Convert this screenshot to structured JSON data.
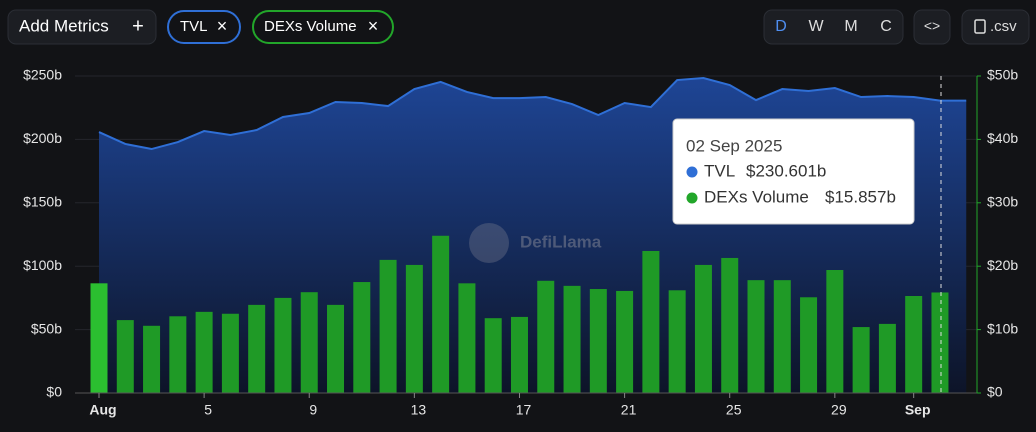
{
  "toolbar": {
    "add_metrics": "Add Metrics",
    "plus": "+",
    "chips": [
      "TVL",
      "DEXs Volume"
    ],
    "close": "×",
    "periods": [
      "D",
      "W",
      "M",
      "C"
    ],
    "active_period": "D",
    "embed": "<>",
    "csv": ".csv"
  },
  "watermark": "DefiLlama",
  "tooltip": {
    "date": "02 Sep 2025",
    "values": [
      "$230.601b",
      "$15.857b"
    ]
  },
  "chart_data": {
    "type": "bar-area",
    "categories": [
      "Aug",
      null,
      null,
      null,
      "5",
      null,
      null,
      null,
      "9",
      null,
      null,
      null,
      "13",
      null,
      null,
      null,
      "17",
      null,
      null,
      null,
      "21",
      null,
      null,
      null,
      "25",
      null,
      null,
      null,
      "29",
      null,
      null,
      "Sep",
      null,
      null
    ],
    "series": [
      {
        "name": "TVL",
        "type": "area",
        "color": "#2f6fd6",
        "axis": "y",
        "values": [
          205.8,
          196.4,
          192.4,
          197.9,
          206.6,
          203.5,
          207.4,
          217.7,
          220.8,
          229.5,
          228.7,
          226.3,
          239.7,
          245.3,
          237.4,
          232.6,
          232.6,
          233.4,
          227.9,
          219.2,
          228.7,
          225.5,
          246.8,
          248.4,
          242.9,
          231.0,
          239.7,
          238.2,
          240.5,
          233.4,
          234.2,
          233.4,
          230.601,
          230.6
        ]
      },
      {
        "name": "DEXs Volume",
        "type": "bar",
        "color": "#1f9a26",
        "axis": "y2",
        "values": [
          17.3,
          11.5,
          10.6,
          12.1,
          12.8,
          12.5,
          13.9,
          15.0,
          15.9,
          13.9,
          17.5,
          21.0,
          20.2,
          24.8,
          17.3,
          11.8,
          12.0,
          17.7,
          16.9,
          16.4,
          16.1,
          22.4,
          16.2,
          20.2,
          21.3,
          17.8,
          17.8,
          15.1,
          19.4,
          10.4,
          10.9,
          15.3,
          15.857,
          null
        ]
      }
    ],
    "ylim": [
      0,
      250
    ],
    "yticks": [
      {
        "value": 0,
        "label": "$0"
      },
      {
        "value": 50,
        "label": "$50b"
      },
      {
        "value": 100,
        "label": "$100b"
      },
      {
        "value": 150,
        "label": "$150b"
      },
      {
        "value": 200,
        "label": "$200b"
      },
      {
        "value": 250,
        "label": "$250b"
      }
    ],
    "y2lim": [
      0,
      50
    ],
    "y2ticks": [
      {
        "value": 0,
        "label": "$0"
      },
      {
        "value": 10,
        "label": "$10b"
      },
      {
        "value": 20,
        "label": "$20b"
      },
      {
        "value": 30,
        "label": "$30b"
      },
      {
        "value": 40,
        "label": "$40b"
      },
      {
        "value": 50,
        "label": "$50b"
      }
    ],
    "grid": true
  }
}
